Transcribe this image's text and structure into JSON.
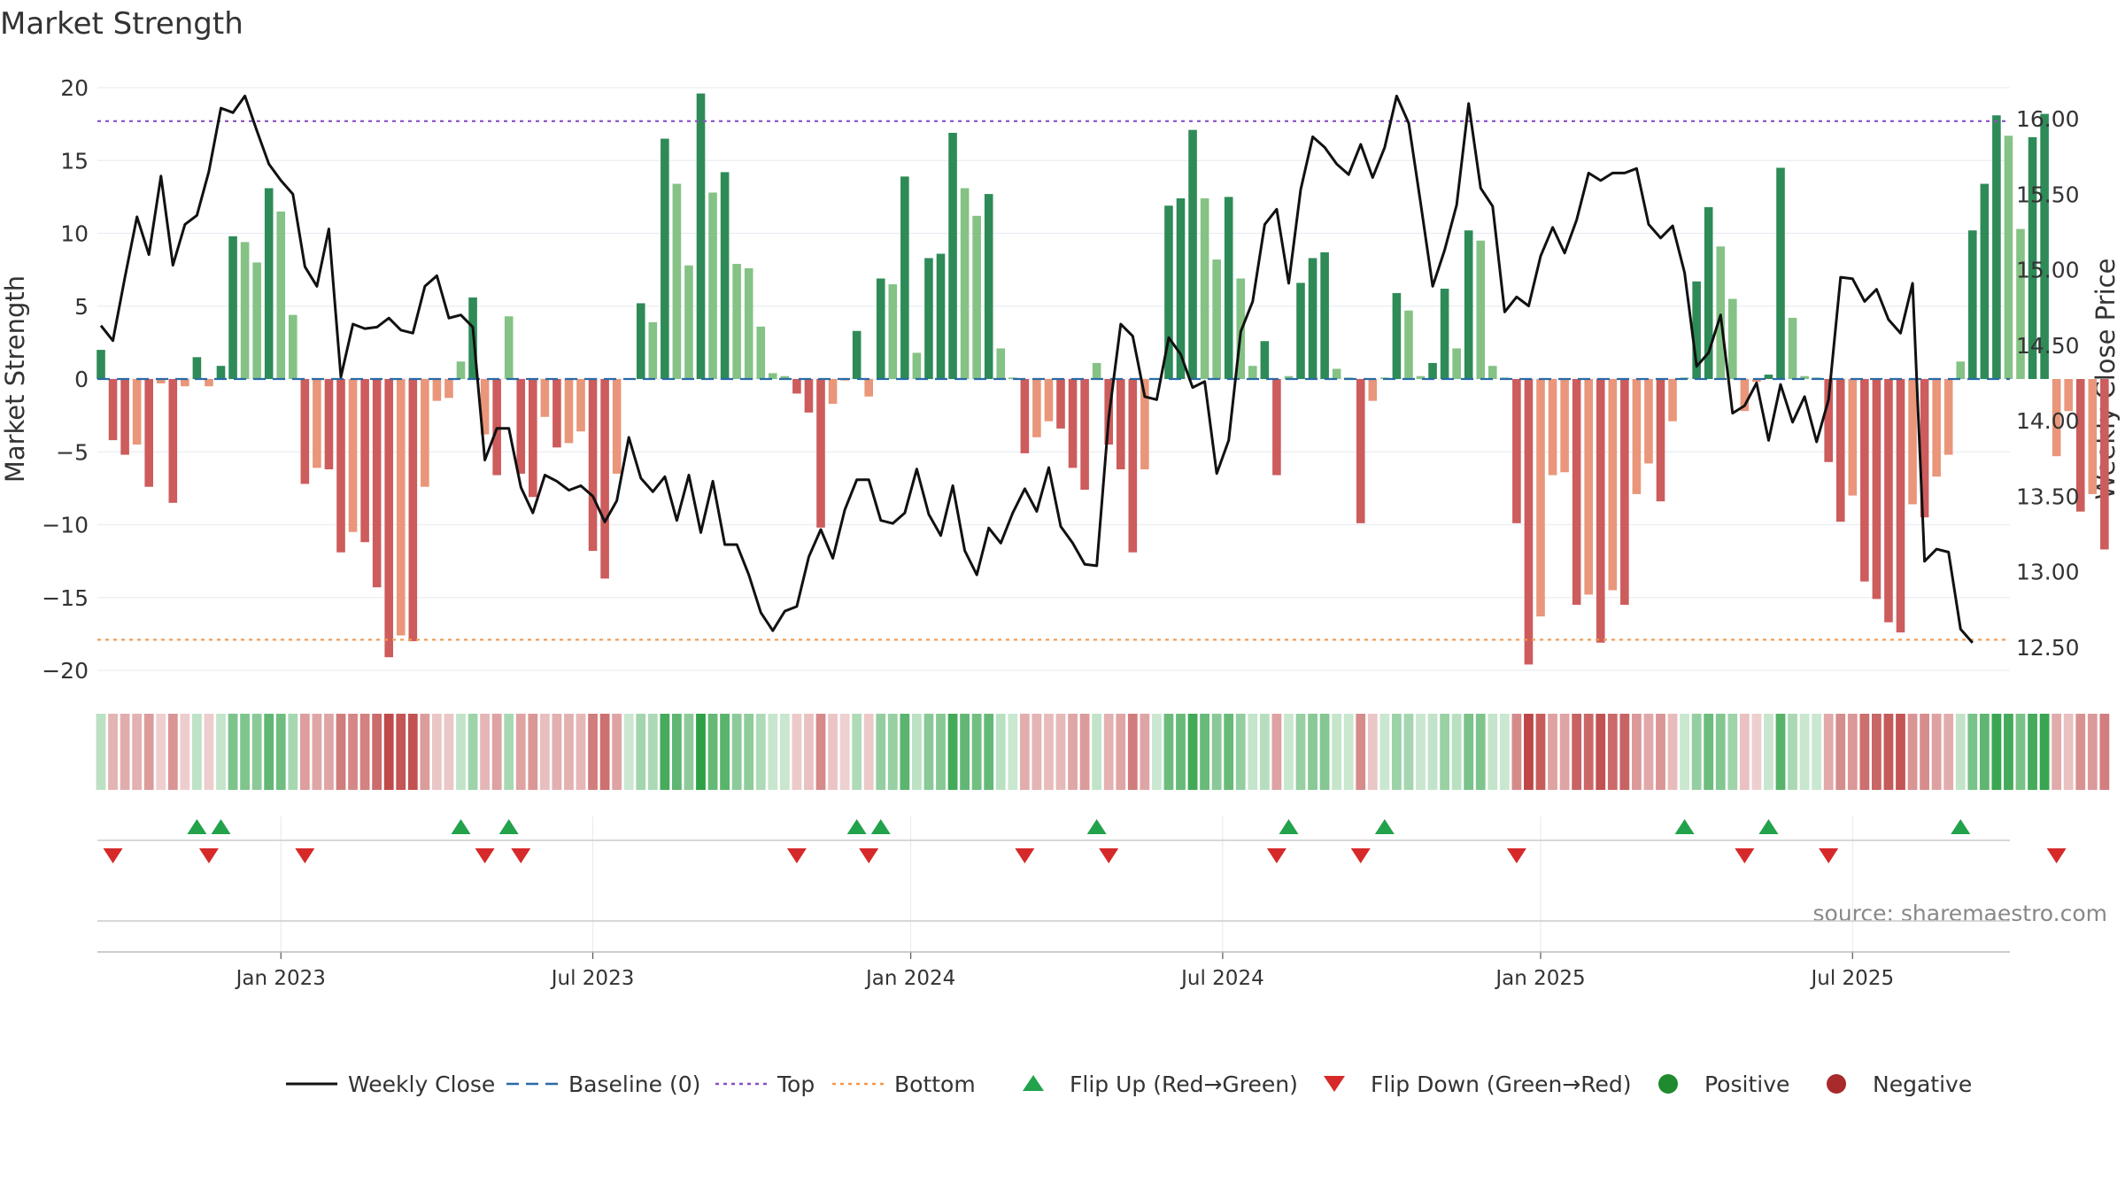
{
  "chart_data": {
    "type": "bar",
    "title": "Market Strength",
    "ylabel_left": "Market Strength",
    "ylabel_right": "Weekly Close Price",
    "ylim_left": [
      -21.5,
      21
    ],
    "ylim_right": [
      12.38,
      16.45
    ],
    "left_ticks": [
      20,
      15,
      10,
      5,
      0,
      -5,
      -10,
      -15,
      -20
    ],
    "left_tick_labels": [
      "20",
      "15",
      "10",
      "5",
      "0",
      "−5",
      "−10",
      "−15",
      "−20"
    ],
    "right_ticks": [
      16.0,
      15.5,
      15.0,
      14.5,
      14.0,
      13.5,
      13.0,
      12.5
    ],
    "right_tick_labels": [
      "16.00",
      "15.50",
      "15.00",
      "14.50",
      "14.00",
      "13.50",
      "13.00",
      "12.50"
    ],
    "x_ticks": [
      {
        "week": 15,
        "label": "Jan 2023"
      },
      {
        "week": 41,
        "label": "Jul 2023"
      },
      {
        "week": 67.5,
        "label": "Jan 2024"
      },
      {
        "week": 93.5,
        "label": "Jul 2024"
      },
      {
        "week": 120,
        "label": "Jan 2025"
      },
      {
        "week": 146,
        "label": "Jul 2025"
      }
    ],
    "top_line": 17.7,
    "bottom_line": -17.9,
    "strength": [
      2,
      -4.2,
      -5.2,
      -4.5,
      -7.4,
      -0.3,
      -8.5,
      -0.5,
      1.5,
      -0.5,
      0.9,
      9.8,
      9.4,
      8,
      13.1,
      11.5,
      4.4,
      -7.2,
      -6.1,
      -6.2,
      -11.9,
      -10.5,
      -11.2,
      -14.3,
      -19.1,
      -17.6,
      -18,
      -7.4,
      -1.5,
      -1.3,
      1.2,
      5.6,
      -3.8,
      -6.6,
      4.3,
      -6.5,
      -8.1,
      -2.6,
      -4.7,
      -4.4,
      -3.6,
      -11.8,
      -13.7,
      -6.5,
      0,
      5.2,
      3.9,
      16.5,
      13.4,
      7.8,
      19.6,
      12.8,
      14.2,
      7.9,
      7.6,
      3.6,
      0.4,
      0.2,
      -1,
      -2.3,
      -10.2,
      -1.7,
      -0.1,
      3.3,
      -1.2,
      6.9,
      6.5,
      13.9,
      1.8,
      8.3,
      8.6,
      16.9,
      13.1,
      11.2,
      12.7,
      2.1,
      0.1,
      -5.1,
      -4,
      -2.9,
      -3.4,
      -6.1,
      -7.6,
      1.1,
      -4.5,
      -6.2,
      -11.9,
      -6.2,
      0,
      11.9,
      12.4,
      17.1,
      12.4,
      8.2,
      12.5,
      6.9,
      0.9,
      2.6,
      -6.6,
      0.2,
      6.6,
      8.3,
      8.7,
      0.7,
      0.1,
      -9.9,
      -1.5,
      0.1,
      5.9,
      4.7,
      0.2,
      1.1,
      6.2,
      2.1,
      10.2,
      9.5,
      0.9,
      0.1,
      -9.9,
      -19.6,
      -16.3,
      -6.6,
      -6.4,
      -15.5,
      -14.8,
      -18.1,
      -14.5,
      -15.5,
      -7.9,
      -5.8,
      -8.4,
      -2.9,
      0.1,
      6.7,
      11.8,
      9.1,
      5.5,
      -2.2,
      -0.2,
      0.3,
      14.5,
      4.2,
      0.2,
      0.1,
      -5.7,
      -9.8,
      -8,
      -13.9,
      -15.1,
      -16.7,
      -17.4,
      -8.6,
      -9.5,
      -6.7,
      -5.2,
      1.2,
      10.2,
      13.4,
      18.1,
      16.7,
      10.3,
      16.6,
      18.2,
      -5.3,
      -2.2,
      -9.1,
      -7.9,
      -11.7
    ],
    "close": [
      14.63,
      14.53,
      14.95,
      15.35,
      15.1,
      15.62,
      15.03,
      15.3,
      15.36,
      15.65,
      16.07,
      16.04,
      16.15,
      15.92,
      15.7,
      15.59,
      15.5,
      15.02,
      14.89,
      15.27,
      14.29,
      14.64,
      14.61,
      14.62,
      14.68,
      14.6,
      14.58,
      14.89,
      14.96,
      14.68,
      14.7,
      14.62,
      13.74,
      13.95,
      13.95,
      13.56,
      13.39,
      13.64,
      13.6,
      13.54,
      13.57,
      13.5,
      13.33,
      13.47,
      13.89,
      13.62,
      13.53,
      13.63,
      13.34,
      13.64,
      13.26,
      13.6,
      13.18,
      13.18,
      12.98,
      12.73,
      12.61,
      12.74,
      12.77,
      13.1,
      13.28,
      13.09,
      13.41,
      13.61,
      13.61,
      13.34,
      13.32,
      13.39,
      13.68,
      13.38,
      13.24,
      13.57,
      13.14,
      12.98,
      13.29,
      13.19,
      13.39,
      13.55,
      13.4,
      13.69,
      13.3,
      13.19,
      13.05,
      13.04,
      14.02,
      14.64,
      14.56,
      14.16,
      14.14,
      14.55,
      14.44,
      14.22,
      14.26,
      13.65,
      13.87,
      14.59,
      14.79,
      15.3,
      15.4,
      14.91,
      15.53,
      15.88,
      15.81,
      15.7,
      15.63,
      15.83,
      15.61,
      15.81,
      16.15,
      15.97,
      15.44,
      14.89,
      15.13,
      15.43,
      16.1,
      15.54,
      15.42,
      14.72,
      14.82,
      14.76,
      15.09,
      15.28,
      15.11,
      15.33,
      15.64,
      15.59,
      15.64,
      15.64,
      15.67,
      15.3,
      15.21,
      15.29,
      14.98,
      14.36,
      14.45,
      14.7,
      14.05,
      14.1,
      14.25,
      13.87,
      14.24,
      13.99,
      14.16,
      13.86,
      14.14,
      14.95,
      14.94,
      14.79,
      14.87,
      14.67,
      14.58,
      14.91,
      13.07,
      13.15,
      13.13,
      12.62,
      12.53
    ],
    "legend": [
      {
        "kind": "line",
        "label": "Weekly Close",
        "color": "#111111"
      },
      {
        "kind": "dash",
        "label": "Baseline (0)",
        "color": "#2a6aa6"
      },
      {
        "kind": "dot",
        "label": "Top",
        "color": "#8a4fc4"
      },
      {
        "kind": "dot",
        "label": "Bottom",
        "color": "#ef9a50"
      },
      {
        "kind": "tri-up",
        "label": "Flip Up (Red→Green)",
        "color": "#22a24a"
      },
      {
        "kind": "tri-down",
        "label": "Flip Down (Green→Red)",
        "color": "#d62a2a"
      },
      {
        "kind": "circle",
        "label": "Positive",
        "color": "#1f8a2e"
      },
      {
        "kind": "circle",
        "label": "Negative",
        "color": "#a82a2a"
      }
    ],
    "source": "source: sharemaestro.com",
    "colors": {
      "pos_dark": "#2e8b57",
      "pos_light": "#85c285",
      "neg_dark": "#cd5c5c",
      "neg_light": "#e9967a",
      "close_line": "#111111",
      "baseline": "#2a6aa6",
      "top": "#8a4fc4",
      "bottom": "#ef9a50",
      "flip_up": "#22a24a",
      "flip_down": "#d62a2a",
      "grid": "#e9edf2",
      "tick_text": "#333333",
      "title_text": "#333333",
      "source_text": "#888888"
    }
  }
}
